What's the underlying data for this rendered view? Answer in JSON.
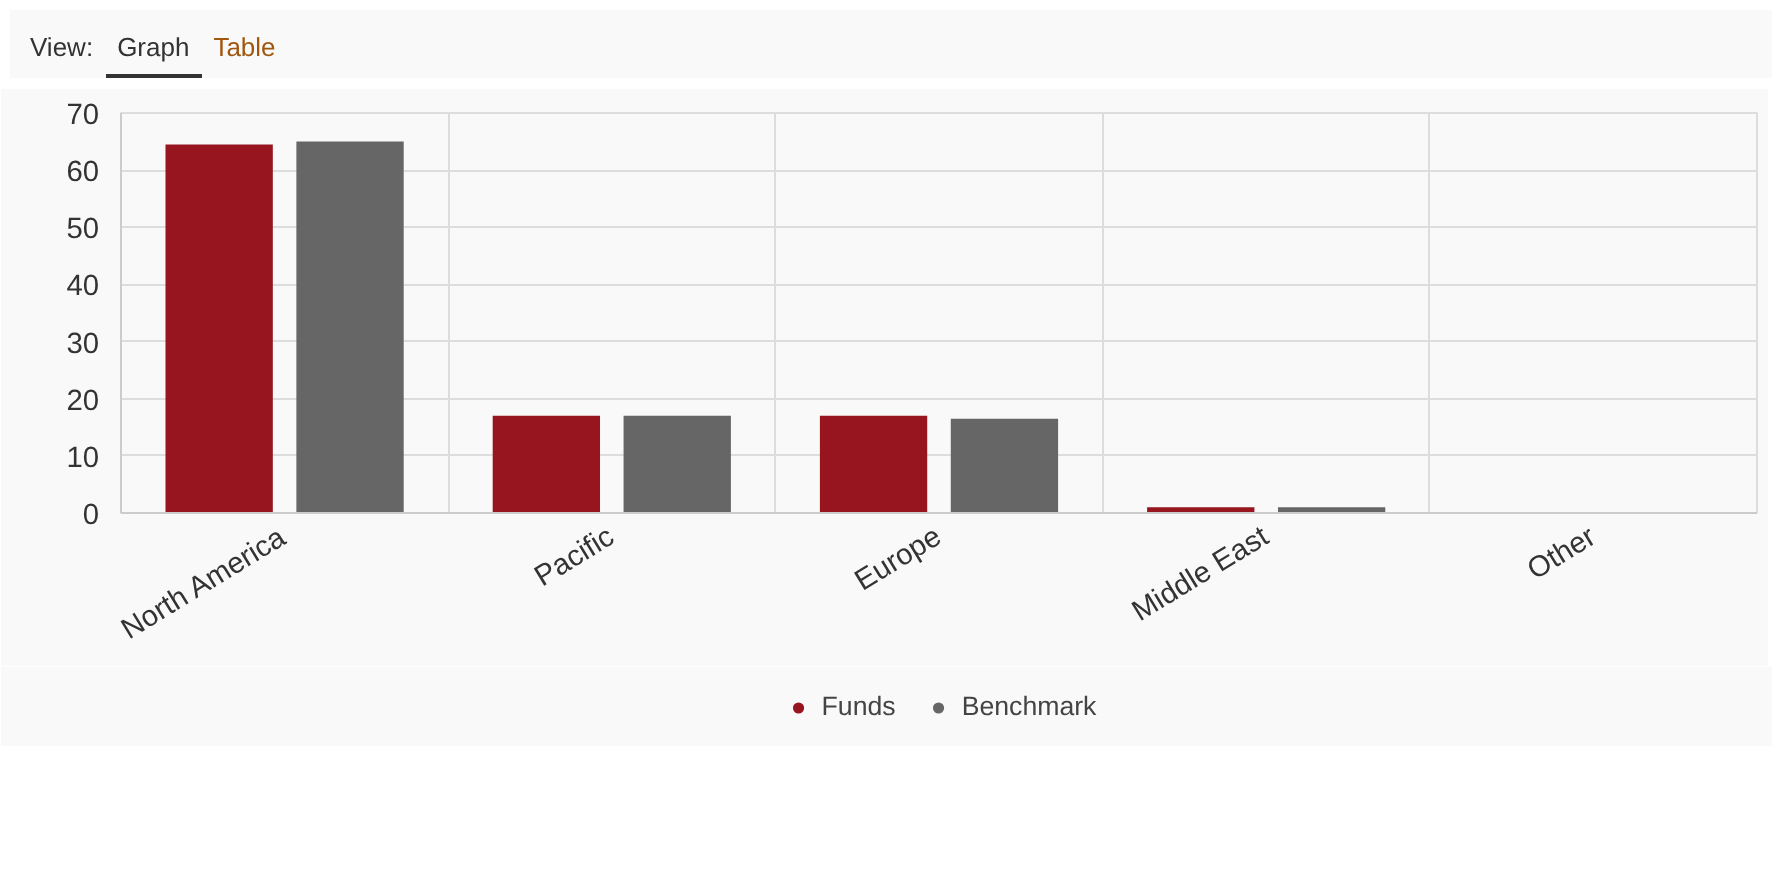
{
  "chart_data": {
    "type": "bar",
    "categories": [
      "North America",
      "Pacific",
      "Europe",
      "Middle East",
      "Other"
    ],
    "series": [
      {
        "name": "Funds",
        "color": "#96151e",
        "values": [
          64.5,
          17,
          17,
          1,
          0
        ]
      },
      {
        "name": "Benchmark",
        "color": "#666666",
        "values": [
          65,
          17,
          16.5,
          1,
          0
        ]
      }
    ],
    "ylim": [
      0,
      70
    ],
    "yticks": [
      0,
      10,
      20,
      30,
      40,
      50,
      60,
      70
    ],
    "grid": true,
    "legend": "bottom",
    "annotations": [
      "View:",
      "Graph",
      "Table"
    ]
  }
}
